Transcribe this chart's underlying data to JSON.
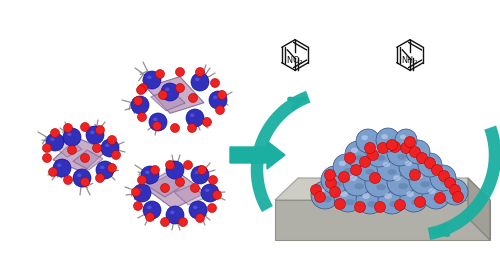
{
  "bg_color": "#ffffff",
  "teal_color": "#1AAFA0",
  "fig_width": 5.0,
  "fig_height": 2.61,
  "dpi": 100,
  "sphere_color_main": "#7B9FCC",
  "sphere_color_dark": "#3A5080",
  "sphere_color_light": "#C0D0EE",
  "cluster_poly_color": "#C0A0C0",
  "cluster_poly_edge": "#806090",
  "ir_blue": "#3030BB",
  "ir_blue_dark": "#1010AA",
  "ir_blue_light": "#7070EE",
  "red_oxygen": "#EE2222",
  "red_oxygen_edge": "#BB0000",
  "gray_ligand": "#909090",
  "mol_color": "#111111",
  "slab_face": "#C8C8C0",
  "slab_side": "#A8A8A0",
  "slab_front": "#B8B8B0"
}
